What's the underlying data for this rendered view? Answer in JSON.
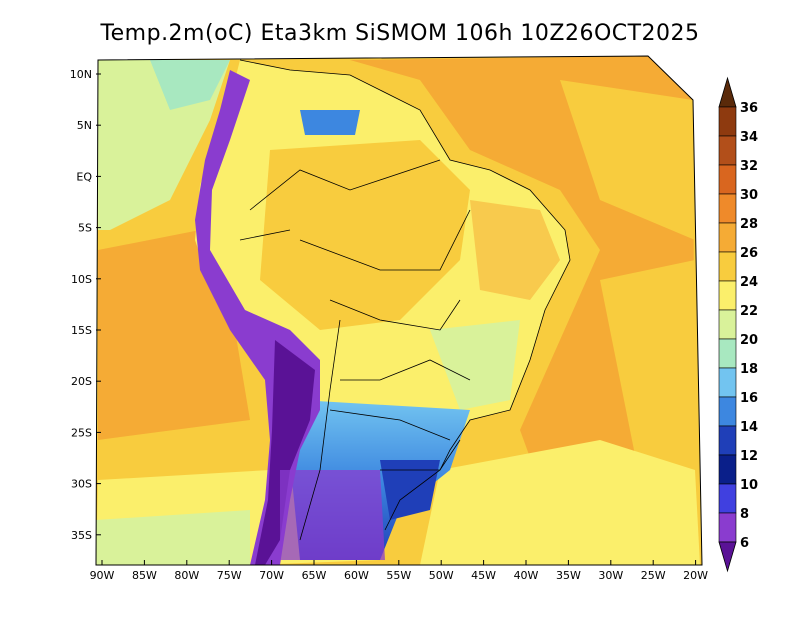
{
  "title": "Temp.2m(oC) Eta3km SiSMOM 106h 10Z26OCT2025",
  "lat_labels": [
    "10N",
    "5N",
    "EQ",
    "5S",
    "10S",
    "15S",
    "20S",
    "25S",
    "30S",
    "35S"
  ],
  "lon_labels": [
    "90W",
    "85W",
    "80W",
    "75W",
    "70W",
    "65W",
    "60W",
    "55W",
    "50W",
    "45W",
    "40W",
    "35W",
    "30W",
    "25W",
    "20W"
  ],
  "colorbar": {
    "labels": [
      "36",
      "34",
      "32",
      "30",
      "28",
      "26",
      "24",
      "22",
      "20",
      "18",
      "16",
      "14",
      "12",
      "10",
      "8",
      "6"
    ],
    "colors_top_to_bottom": [
      "#6b2c0c",
      "#8e3a0f",
      "#b24f1a",
      "#d9661f",
      "#ef8a2a",
      "#f5ab35",
      "#f8cc3e",
      "#fbef6b",
      "#d9f29a",
      "#a8e8c0",
      "#72c4f0",
      "#3d87e0",
      "#1f3fb8",
      "#0a1f8a",
      "#4040e0",
      "#8a3ccf",
      "#5a1296"
    ],
    "top_arrow_color": "#5a2a0a",
    "bottom_arrow_color": "#5a1296"
  },
  "legend_palette": {
    "ocean_warm": "#f5ab35",
    "ocean_mild": "#f8cc3e",
    "ocean_cool": "#fbef6b",
    "land_warm": "#fbef6b",
    "andes_cold": "#4a1a8a",
    "south_cold": "#3d6fe0"
  }
}
